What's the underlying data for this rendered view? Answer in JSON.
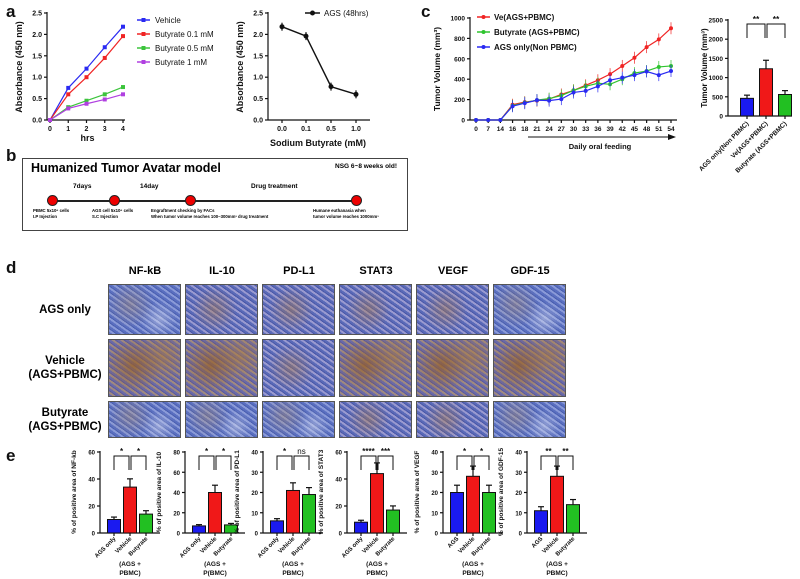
{
  "panel_labels": {
    "a": "a",
    "b": "b",
    "c": "c",
    "d": "d",
    "e": "e"
  },
  "panel_b": {
    "title": "Humanized Tumor Avatar model",
    "mouse": "NSG 6~8 weeks old!",
    "intervals": [
      "7days",
      "14day",
      "Drug treatment"
    ],
    "notes": [
      [
        "PBMC 5x10⁶ cells",
        "I.P Injection"
      ],
      [
        "AGS cell 5x10⁶ cells",
        "S.C Injection"
      ],
      [
        "Engraftment checking by FACs",
        "When tumor volume reaches 100~300mm³ drug treatment"
      ],
      [
        "Humane euthanasia when",
        "tumor volume reaches 1000mm³"
      ]
    ]
  },
  "panel_d": {
    "columns": [
      "NF-kB",
      "IL-10",
      "PD-L1",
      "STAT3",
      "VEGF",
      "GDF-15"
    ],
    "rows": [
      [
        "AGS only",
        ""
      ],
      [
        "Vehicle",
        "(AGS+PBMC)"
      ],
      [
        "Butyrate",
        "(AGS+PBMC)"
      ]
    ]
  },
  "chart_data": [
    {
      "id": "a1",
      "type": "line",
      "xlabel": "hrs",
      "ylabel": "Absorbance (450 nm)",
      "x": [
        0,
        1,
        2,
        3,
        4
      ],
      "x_ticks": [
        "0",
        "1",
        "2",
        "3",
        "4"
      ],
      "ylim": [
        0,
        2.5
      ],
      "y_ticks": [
        "0.0",
        "0.5",
        "1.0",
        "1.5",
        "2.0",
        "2.5"
      ],
      "legend": "right",
      "series": [
        {
          "name": "Vehicle",
          "color": "#2a2af2",
          "values": [
            0,
            0.75,
            1.2,
            1.7,
            2.18
          ]
        },
        {
          "name": "Butyrate 0.1 mM",
          "color": "#f02424",
          "values": [
            0,
            0.6,
            1.0,
            1.45,
            1.96
          ]
        },
        {
          "name": "Butyrate 0.5 mM",
          "color": "#3cc43c",
          "values": [
            0,
            0.3,
            0.45,
            0.6,
            0.77
          ]
        },
        {
          "name": "Butyrate 1 mM",
          "color": "#b040e0",
          "values": [
            0,
            0.27,
            0.38,
            0.48,
            0.6
          ]
        }
      ]
    },
    {
      "id": "a2",
      "type": "line",
      "xlabel": "Sodium Butyrate (mM)",
      "ylabel": "Absorbance (450 nm)",
      "categories": [
        "0.0",
        "0.1",
        "0.5",
        "1.0"
      ],
      "ylim": [
        0,
        2.5
      ],
      "y_ticks": [
        "0.0",
        "0.5",
        "1.0",
        "1.5",
        "2.0",
        "2.5"
      ],
      "legend": "top-right",
      "series": [
        {
          "name": "AGS (48hrs)",
          "color": "#111111",
          "values": [
            2.18,
            1.96,
            0.78,
            0.6
          ]
        }
      ]
    },
    {
      "id": "c1",
      "type": "line",
      "xlabel": "Daily oral feeding",
      "ylabel": "Tumor Volume (mm³)",
      "categories": [
        "0",
        "7",
        "14",
        "16",
        "18",
        "21",
        "24",
        "27",
        "30",
        "33",
        "36",
        "39",
        "42",
        "45",
        "48",
        "51",
        "54"
      ],
      "ylim": [
        0,
        1000
      ],
      "y_ticks": [
        "0",
        "200",
        "400",
        "600",
        "800",
        "1000"
      ],
      "legend": "top-left",
      "series": [
        {
          "name": "Ve(AGS+PBMC)",
          "color": "#f02424",
          "values": [
            0,
            0,
            0,
            150,
            175,
            190,
            205,
            250,
            290,
            340,
            390,
            450,
            530,
            610,
            715,
            790,
            900
          ]
        },
        {
          "name": "Butyrate (AGS+PBMC)",
          "color": "#2fc42f",
          "values": [
            0,
            0,
            0,
            140,
            170,
            195,
            210,
            240,
            290,
            330,
            360,
            350,
            400,
            460,
            480,
            520,
            530
          ]
        },
        {
          "name": "AGS only(Non PBMC)",
          "color": "#2a2af2",
          "values": [
            0,
            0,
            0,
            135,
            165,
            195,
            190,
            205,
            270,
            285,
            330,
            390,
            415,
            440,
            475,
            440,
            480
          ]
        }
      ]
    },
    {
      "id": "c2",
      "type": "bar",
      "ylabel": "Tumor Volume (mm³)",
      "categories": [
        "AGS only(Non PBMC)",
        "Ve(AGS+PBMC)",
        "Butyrate (AGS+PBMC)"
      ],
      "values": [
        460,
        1230,
        560
      ],
      "colors": [
        "#1a1af0",
        "#f01818",
        "#22c022"
      ],
      "ylim": [
        0,
        2500
      ],
      "y_ticks": [
        "0",
        "500",
        "1000",
        "1500",
        "2000",
        "2500"
      ],
      "significance": [
        "**",
        "**"
      ]
    },
    {
      "id": "e1",
      "type": "bar",
      "ylabel": "% of positive area of NF-kb",
      "categories": [
        "AGS only",
        "Vehicle",
        "Butyrate"
      ],
      "group_label": [
        "(AGS +",
        "PBMC)"
      ],
      "values": [
        10,
        34,
        14
      ],
      "ylim": [
        0,
        60
      ],
      "y_ticks": [
        "0",
        "20",
        "40",
        "60"
      ],
      "significance": [
        "*",
        "*"
      ]
    },
    {
      "id": "e2",
      "type": "bar",
      "ylabel": "% of positive area of IL-10",
      "categories": [
        "AGS only",
        "Vehicle",
        "Butyrate"
      ],
      "group_label": [
        "(AGS +",
        "P(BMC)"
      ],
      "values": [
        7,
        40,
        8
      ],
      "ylim": [
        0,
        80
      ],
      "y_ticks": [
        "0",
        "20",
        "40",
        "60",
        "80"
      ],
      "significance": [
        "*",
        "*"
      ]
    },
    {
      "id": "e3",
      "type": "bar",
      "ylabel": "% of positive area of PD-L1",
      "categories": [
        "AGS only",
        "Vehicle",
        "Butyrate"
      ],
      "group_label": [
        "(AGS +",
        "PBMC)"
      ],
      "values": [
        6,
        21,
        19
      ],
      "ylim": [
        0,
        40
      ],
      "y_ticks": [
        "0",
        "10",
        "20",
        "30",
        "40"
      ],
      "significance": [
        "*",
        "ns"
      ]
    },
    {
      "id": "e4",
      "type": "bar",
      "ylabel": "% of positive area of STAT3",
      "categories": [
        "AGS only",
        "Vehicle",
        "Butyrate"
      ],
      "group_label": [
        "(AGS +",
        "PBMC)"
      ],
      "values": [
        8,
        44,
        17
      ],
      "ylim": [
        0,
        60
      ],
      "y_ticks": [
        "0",
        "20",
        "40",
        "60"
      ],
      "significance": [
        "****",
        "***"
      ]
    },
    {
      "id": "e5",
      "type": "bar",
      "ylabel": "% of positive area of VEGF",
      "categories": [
        "AGS",
        "Vehicle",
        "Butyrate"
      ],
      "group_label": [
        "(AGS +",
        "PBMC)"
      ],
      "values": [
        20,
        28,
        20
      ],
      "ylim": [
        0,
        40
      ],
      "y_ticks": [
        "0",
        "10",
        "20",
        "30",
        "40"
      ],
      "significance": [
        "*",
        "*"
      ]
    },
    {
      "id": "e6",
      "type": "bar",
      "ylabel": "% of positive area of GDF-15",
      "categories": [
        "AGS",
        "Vehicle",
        "Butyrate"
      ],
      "group_label": [
        "(AGS +",
        "PBMC)"
      ],
      "values": [
        11,
        28,
        14
      ],
      "ylim": [
        0,
        40
      ],
      "y_ticks": [
        "0",
        "10",
        "20",
        "30",
        "40"
      ],
      "significance": [
        "**",
        "**"
      ]
    }
  ]
}
